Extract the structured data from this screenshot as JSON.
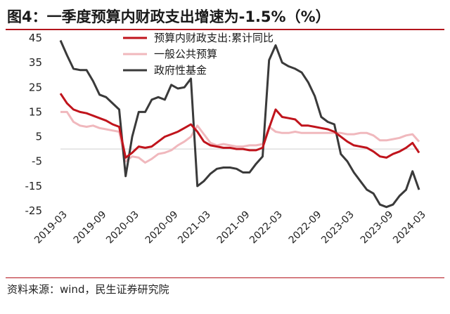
{
  "header": {
    "title": "图4：一季度预算内财政支出增速为-1.5%（%）"
  },
  "footer": {
    "source": "资料来源：wind，民生证券研究院"
  },
  "colors": {
    "accent": "#b3141c",
    "series_budget_cum": "#c0141c",
    "series_general_budget": "#f0b8bd",
    "series_gov_fund": "#3a3a3a"
  },
  "chart_data": {
    "type": "line",
    "title": "一季度预算内财政支出增速为-1.5%",
    "ylabel": "%",
    "ylim": [
      -25,
      45
    ],
    "yticks": [
      45,
      35,
      25,
      15,
      5,
      -5,
      -15,
      -25
    ],
    "x": [
      "2019-03",
      "2019-04",
      "2019-05",
      "2019-06",
      "2019-07",
      "2019-08",
      "2019-09",
      "2019-10",
      "2019-11",
      "2019-12",
      "2020-02",
      "2020-03",
      "2020-04",
      "2020-05",
      "2020-06",
      "2020-07",
      "2020-08",
      "2020-09",
      "2020-10",
      "2020-11",
      "2020-12",
      "2021-02",
      "2021-03",
      "2021-04",
      "2021-05",
      "2021-06",
      "2021-07",
      "2021-08",
      "2021-09",
      "2021-10",
      "2021-11",
      "2021-12",
      "2022-02",
      "2022-03",
      "2022-04",
      "2022-05",
      "2022-06",
      "2022-07",
      "2022-08",
      "2022-09",
      "2022-10",
      "2022-11",
      "2022-12",
      "2023-02",
      "2023-03",
      "2023-04",
      "2023-05",
      "2023-06",
      "2023-07",
      "2023-08",
      "2023-09",
      "2023-10",
      "2023-11",
      "2023-12",
      "2024-02",
      "2024-03"
    ],
    "xtick_labels": [
      "2019-03",
      "2019-09",
      "2020-03",
      "2020-09",
      "2021-03",
      "2021-09",
      "2022-03",
      "2022-09",
      "2023-03",
      "2023-09",
      "2024-03"
    ],
    "xtick_index": [
      0,
      6,
      11,
      17,
      22,
      28,
      33,
      39,
      44,
      50,
      55
    ],
    "legend": [
      "预算内财政支出:累计同比",
      "一般公共预算",
      "政府性基金"
    ],
    "series": [
      {
        "name": "预算内财政支出:累计同比",
        "values": [
          22.5,
          18.5,
          16.0,
          15.0,
          14.5,
          13.5,
          12.5,
          11.5,
          10.0,
          9.0,
          -3.5,
          -1.5,
          1.0,
          0.5,
          1.0,
          3.0,
          5.0,
          6.0,
          7.0,
          8.5,
          10.0,
          7.0,
          3.0,
          1.5,
          1.0,
          0.5,
          0.5,
          0.0,
          0.0,
          -0.5,
          -0.5,
          0.5,
          8.5,
          16.0,
          13.0,
          12.5,
          12.0,
          9.5,
          9.5,
          9.0,
          8.5,
          8.0,
          7.0,
          5.0,
          3.0,
          1.5,
          1.0,
          0.5,
          -1.0,
          -3.0,
          -3.5,
          -2.0,
          -1.0,
          0.5,
          2.5,
          -1.5
        ]
      },
      {
        "name": "一般公共预算",
        "values": [
          15.0,
          15.0,
          11.0,
          9.5,
          9.0,
          9.5,
          8.5,
          8.0,
          7.5,
          7.0,
          -5.0,
          -3.0,
          -3.5,
          -5.5,
          -4.0,
          -2.0,
          -1.5,
          -0.5,
          1.5,
          3.0,
          5.0,
          9.5,
          6.0,
          2.5,
          1.5,
          2.0,
          1.5,
          1.0,
          1.0,
          1.5,
          1.5,
          2.0,
          9.0,
          7.0,
          6.5,
          6.5,
          7.0,
          6.5,
          6.5,
          6.5,
          6.5,
          6.5,
          6.5,
          6.5,
          6.0,
          6.0,
          6.5,
          6.5,
          5.5,
          3.5,
          3.5,
          4.0,
          4.5,
          5.5,
          6.0,
          3.0
        ]
      },
      {
        "name": "政府性基金",
        "values": [
          44.0,
          38.0,
          32.5,
          32.0,
          32.0,
          27.5,
          22.0,
          21.0,
          18.5,
          16.0,
          -11.0,
          5.0,
          15.0,
          15.0,
          20.0,
          21.0,
          20.0,
          26.0,
          24.5,
          25.0,
          28.5,
          -15.0,
          -13.0,
          -10.0,
          -8.0,
          -7.5,
          -7.5,
          -8.0,
          -9.5,
          -9.5,
          -6.0,
          -3.0,
          36.0,
          42.0,
          35.0,
          33.5,
          32.5,
          31.0,
          27.0,
          21.5,
          13.0,
          11.0,
          10.0,
          -2.0,
          -5.0,
          -9.5,
          -13.0,
          -16.5,
          -18.0,
          -22.5,
          -23.5,
          -22.5,
          -19.0,
          -16.5,
          -9.0,
          -16.5
        ]
      }
    ]
  }
}
